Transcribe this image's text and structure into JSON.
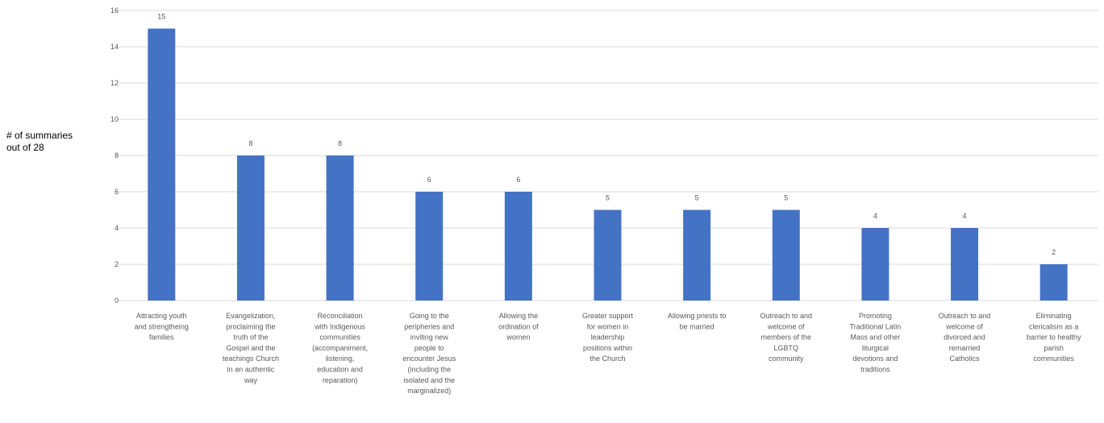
{
  "chart_data": {
    "type": "bar",
    "title": "",
    "xlabel": "",
    "ylabel_lines": [
      "# of summaries",
      "out of 28"
    ],
    "ylim": [
      0,
      16
    ],
    "yticks": [
      0,
      2,
      4,
      6,
      8,
      10,
      12,
      14,
      16
    ],
    "grid": true,
    "bar_color": "#4472C4",
    "grid_color": "#D9D9D9",
    "categories": [
      [
        "Attracting youth",
        "and strengtheing",
        "families"
      ],
      [
        "Evangelization,",
        "proclaiming the",
        "truth of the",
        "Gospel and the",
        "teachings Church",
        "in an authentic",
        "way"
      ],
      [
        "Reconciliation",
        "with Indigenous",
        "communities",
        "(accompaniment,",
        "listening,",
        "education and",
        "reparation)"
      ],
      [
        "Going to the",
        "peripheries and",
        "inviting new",
        "people to",
        "encounter Jesus",
        "(including the",
        "isolated and the",
        "marginalized)"
      ],
      [
        "Allowing the",
        "ordination of",
        "women"
      ],
      [
        "Greater support",
        "for women in",
        "leadership",
        "positions within",
        "the Church"
      ],
      [
        "Allowing priests to",
        "be married"
      ],
      [
        "Outreach to and",
        "welcome of",
        "members of the",
        "LGBTQ",
        "community"
      ],
      [
        "Promoting",
        "Traditional Latin",
        "Mass and other",
        "liturgical",
        "devotions and",
        "traditions"
      ],
      [
        "Outreach to and",
        "welcome of",
        "divorced and",
        "remarried",
        "Catholics"
      ],
      [
        "Eliminating",
        "clericalism as a",
        "barrier to healthy",
        "parish",
        "communities"
      ]
    ],
    "values": [
      15,
      8,
      8,
      6,
      6,
      5,
      5,
      5,
      4,
      4,
      2
    ]
  }
}
